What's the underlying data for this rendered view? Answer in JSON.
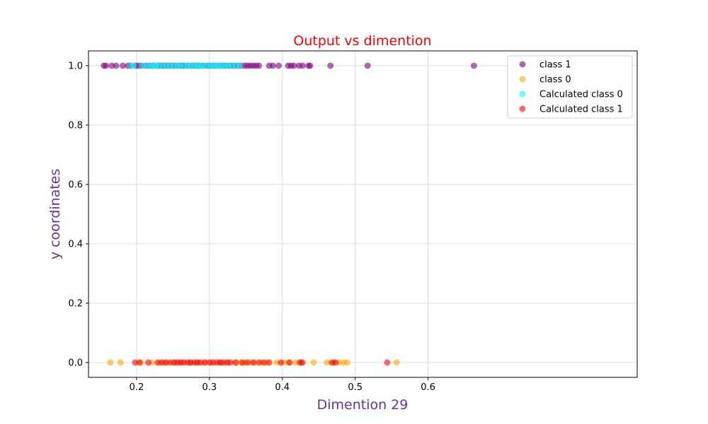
{
  "chart_data": {
    "type": "scatter",
    "title": "Output vs dimention",
    "xlabel": "Dimention 29",
    "ylabel": "y coordinates",
    "xlim": [
      0.134,
      0.887
    ],
    "ylim": [
      -0.05,
      1.05
    ],
    "xticks": [
      "0.2",
      "0.3",
      "0.4",
      "0.5",
      "0.6"
    ],
    "yticks": [
      "0.0",
      "0.2",
      "0.4",
      "0.6",
      "0.8",
      "1.0"
    ],
    "grid": true,
    "legend_position": "top-right",
    "colors": {
      "title": "#ff0000",
      "axis_label": "#663399",
      "grid": "#d3dcdc"
    },
    "series": [
      {
        "name": "class 1",
        "color": "#800080",
        "x": [
          0.155,
          0.158,
          0.166,
          0.172,
          0.181,
          0.188,
          0.192,
          0.199,
          0.203,
          0.207,
          0.213,
          0.218,
          0.223,
          0.229,
          0.234,
          0.238,
          0.243,
          0.248,
          0.252,
          0.257,
          0.262,
          0.266,
          0.271,
          0.276,
          0.281,
          0.286,
          0.291,
          0.296,
          0.3,
          0.305,
          0.309,
          0.314,
          0.319,
          0.323,
          0.328,
          0.333,
          0.338,
          0.343,
          0.348,
          0.352,
          0.356,
          0.36,
          0.364,
          0.368,
          0.382,
          0.387,
          0.395,
          0.408,
          0.412,
          0.416,
          0.423,
          0.428,
          0.436,
          0.438,
          0.466,
          0.517,
          0.663
        ],
        "y": [
          1,
          1,
          1,
          1,
          1,
          1,
          1,
          1,
          1,
          1,
          1,
          1,
          1,
          1,
          1,
          1,
          1,
          1,
          1,
          1,
          1,
          1,
          1,
          1,
          1,
          1,
          1,
          1,
          1,
          1,
          1,
          1,
          1,
          1,
          1,
          1,
          1,
          1,
          1,
          1,
          1,
          1,
          1,
          1,
          1,
          1,
          1,
          1,
          1,
          1,
          1,
          1,
          1,
          1,
          1,
          1,
          1
        ]
      },
      {
        "name": "class 0",
        "color": "#ffa500",
        "x": [
          0.164,
          0.178,
          0.206,
          0.221,
          0.232,
          0.241,
          0.253,
          0.262,
          0.274,
          0.284,
          0.293,
          0.302,
          0.314,
          0.326,
          0.337,
          0.344,
          0.349,
          0.355,
          0.362,
          0.371,
          0.379,
          0.392,
          0.402,
          0.408,
          0.418,
          0.428,
          0.443,
          0.461,
          0.47,
          0.478,
          0.484,
          0.489,
          0.557
        ],
        "y": [
          0,
          0,
          0,
          0,
          0,
          0,
          0,
          0,
          0,
          0,
          0,
          0,
          0,
          0,
          0,
          0,
          0,
          0,
          0,
          0,
          0,
          0,
          0,
          0,
          0,
          0,
          0,
          0,
          0,
          0,
          0,
          0,
          0
        ]
      },
      {
        "name": "Calculated class 0",
        "color": "#00ffff",
        "x": [
          0.192,
          0.196,
          0.207,
          0.214,
          0.219,
          0.223,
          0.227,
          0.231,
          0.236,
          0.241,
          0.246,
          0.251,
          0.256,
          0.26,
          0.265,
          0.27,
          0.274,
          0.279,
          0.283,
          0.287,
          0.291,
          0.296,
          0.301,
          0.305,
          0.309,
          0.313,
          0.318,
          0.322,
          0.326,
          0.331,
          0.337,
          0.342
        ],
        "y": [
          1,
          1,
          1,
          1,
          1,
          1,
          1,
          1,
          1,
          1,
          1,
          1,
          1,
          1,
          1,
          1,
          1,
          1,
          1,
          1,
          1,
          1,
          1,
          1,
          1,
          1,
          1,
          1,
          1,
          1,
          1,
          1
        ]
      },
      {
        "name": "Calculated class 1",
        "color": "#ff0000",
        "x": [
          0.198,
          0.204,
          0.216,
          0.229,
          0.235,
          0.24,
          0.246,
          0.251,
          0.256,
          0.26,
          0.265,
          0.27,
          0.274,
          0.279,
          0.283,
          0.288,
          0.294,
          0.3,
          0.305,
          0.31,
          0.315,
          0.319,
          0.324,
          0.329,
          0.336,
          0.345,
          0.352,
          0.36,
          0.368,
          0.375,
          0.382,
          0.398,
          0.41,
          0.424,
          0.427,
          0.468,
          0.473,
          0.544
        ],
        "y": [
          0,
          0,
          0,
          0,
          0,
          0,
          0,
          0,
          0,
          0,
          0,
          0,
          0,
          0,
          0,
          0,
          0,
          0,
          0,
          0,
          0,
          0,
          0,
          0,
          0,
          0,
          0,
          0,
          0,
          0,
          0,
          0,
          0,
          0,
          0,
          0,
          0,
          0
        ]
      }
    ]
  }
}
